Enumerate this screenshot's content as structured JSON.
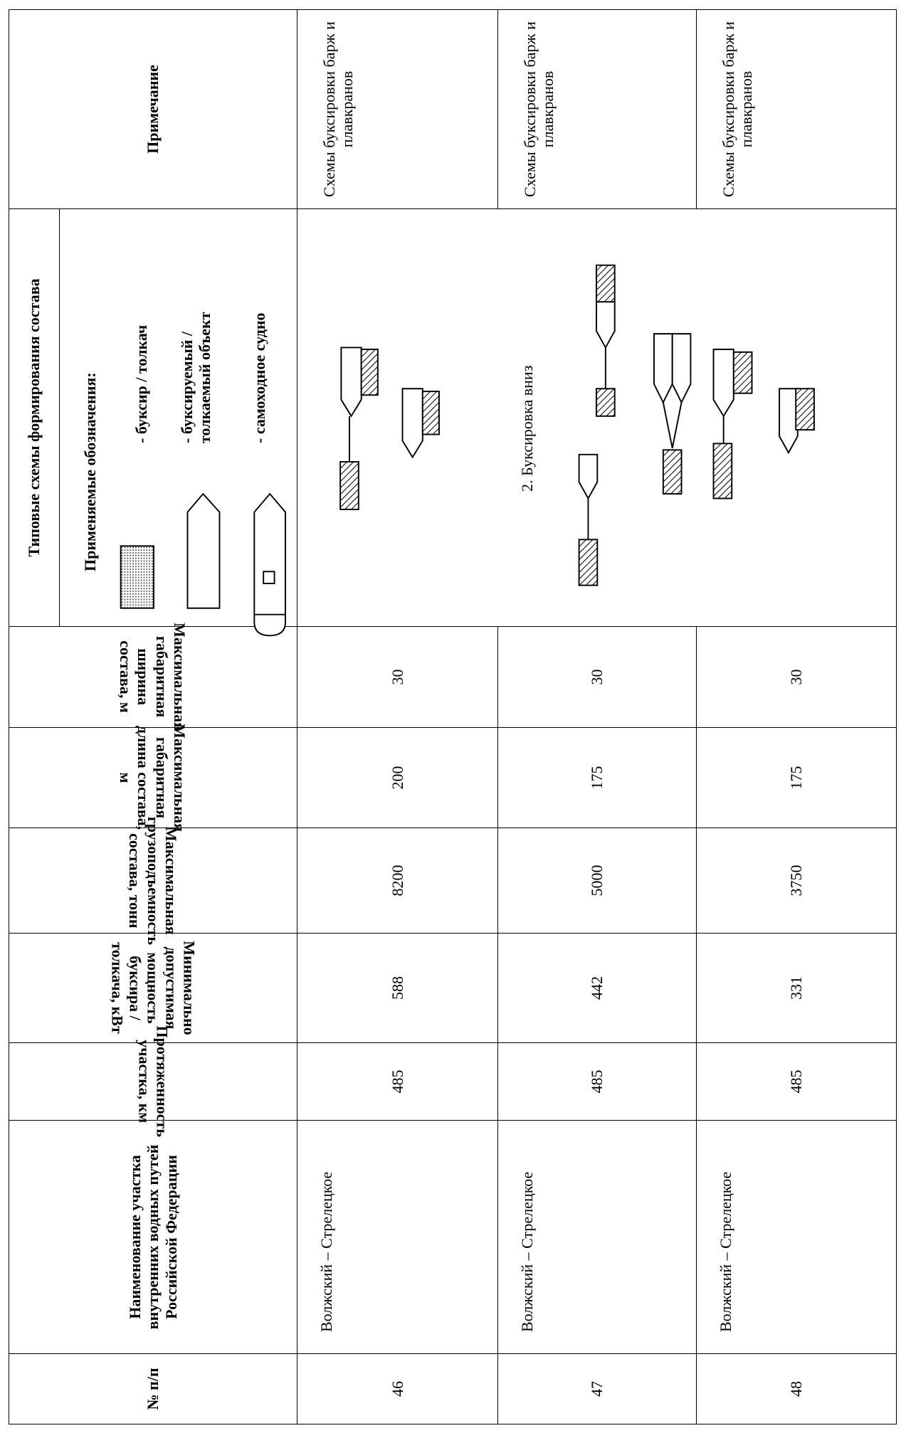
{
  "table": {
    "header": [
      "№ п/п",
      "Наименование участка внутренних водных путей Российской Федерации",
      "Протяженность участка, км",
      "Минимально допустимая мощность буксира / толкача, кВт",
      "Максимальная грузоподъемность состава, тонн",
      "Максимальная габаритная длина состава, м",
      "Максимальная габаритная ширина состава, м",
      "Типовые схемы формирования состава",
      "Примечание"
    ],
    "legend": {
      "title": "Применяемые обозначения:",
      "items": [
        "- буксир / толкач",
        "- буксируемый / толкаемый объект",
        "- самоходное судно"
      ]
    },
    "scheme_caption": "2. Буксировка вниз",
    "rows": [
      [
        46,
        "Волжский – Стрелецкое",
        485,
        588,
        8200,
        200,
        30,
        "Схемы буксировки барж и плавкранов"
      ],
      [
        47,
        "Волжский – Стрелецкое",
        485,
        442,
        5000,
        175,
        30,
        "Схемы буксировки барж и плавкранов"
      ],
      [
        48,
        "Волжский – Стрелецкое",
        485,
        331,
        3750,
        175,
        30,
        "Схемы буксировки барж и плавкранов"
      ]
    ]
  }
}
